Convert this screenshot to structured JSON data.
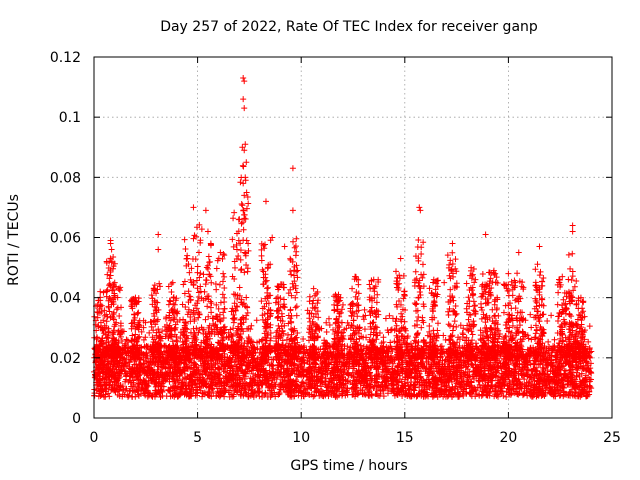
{
  "chart_data": {
    "type": "scatter",
    "title": "Day 257 of 2022, Rate Of TEC Index for receiver ganp",
    "xlabel": "GPS time / hours",
    "ylabel": "ROTI / TECUs",
    "xlim": [
      0,
      25
    ],
    "ylim": [
      0,
      0.12
    ],
    "xticks": [
      0,
      5,
      10,
      15,
      20,
      25
    ],
    "yticks": [
      0,
      0.02,
      0.04,
      0.06,
      0.08,
      0.1,
      0.12
    ],
    "xtick_labels": [
      "0",
      "5",
      "10",
      "15",
      "20",
      "25"
    ],
    "ytick_labels": [
      "0",
      "0.02",
      "0.04",
      "0.06",
      "0.08",
      "0.1",
      "0.12"
    ],
    "grid": true,
    "marker": "+",
    "color": "#ff0000",
    "data_span_hours": [
      0,
      24
    ],
    "series": [
      {
        "name": "ROTI",
        "note": "dense scatter of ROTI samples; representative points read from the figure",
        "points": [
          [
            7.2,
            0.113
          ],
          [
            7.25,
            0.112
          ],
          [
            7.2,
            0.106
          ],
          [
            7.25,
            0.103
          ],
          [
            7.3,
            0.091
          ],
          [
            7.25,
            0.089
          ],
          [
            7.35,
            0.085
          ],
          [
            7.3,
            0.08
          ],
          [
            7.2,
            0.078
          ],
          [
            7.25,
            0.074
          ],
          [
            9.6,
            0.083
          ],
          [
            8.3,
            0.072
          ],
          [
            9.6,
            0.069
          ],
          [
            15.7,
            0.07
          ],
          [
            15.75,
            0.069
          ],
          [
            4.8,
            0.07
          ],
          [
            5.4,
            0.069
          ],
          [
            23.1,
            0.064
          ],
          [
            23.1,
            0.062
          ],
          [
            3.1,
            0.061
          ],
          [
            3.1,
            0.056
          ],
          [
            18.9,
            0.061
          ],
          [
            0.8,
            0.059
          ],
          [
            0.8,
            0.058
          ],
          [
            0.85,
            0.056
          ],
          [
            17.3,
            0.058
          ],
          [
            21.5,
            0.057
          ],
          [
            20.5,
            0.055
          ],
          [
            14.8,
            0.053
          ],
          [
            5.5,
            0.062
          ],
          [
            6.9,
            0.056
          ],
          [
            9.2,
            0.057
          ],
          [
            4.5,
            0.053
          ],
          [
            6.1,
            0.055
          ],
          [
            8.6,
            0.06
          ],
          [
            0.3,
            0.042
          ],
          [
            1.0,
            0.045
          ],
          [
            2.0,
            0.04
          ],
          [
            3.8,
            0.045
          ],
          [
            10.6,
            0.043
          ],
          [
            12.6,
            0.047
          ],
          [
            13.5,
            0.046
          ],
          [
            16.4,
            0.046
          ],
          [
            18.2,
            0.05
          ],
          [
            19.3,
            0.049
          ],
          [
            20.0,
            0.048
          ],
          [
            22.6,
            0.047
          ],
          [
            23.5,
            0.04
          ],
          [
            11.8,
            0.041
          ],
          [
            16.9,
            0.045
          ]
        ]
      }
    ]
  }
}
